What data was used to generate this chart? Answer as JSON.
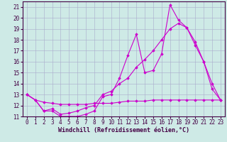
{
  "xlabel": "Windchill (Refroidissement éolien,°C)",
  "xlim": [
    -0.5,
    23.5
  ],
  "ylim": [
    11,
    21.5
  ],
  "xticks": [
    0,
    1,
    2,
    3,
    4,
    5,
    6,
    7,
    8,
    9,
    10,
    11,
    12,
    13,
    14,
    15,
    16,
    17,
    18,
    19,
    20,
    21,
    22,
    23
  ],
  "yticks": [
    11,
    12,
    13,
    14,
    15,
    16,
    17,
    18,
    19,
    20,
    21
  ],
  "background_color": "#ceeae6",
  "line_color": "#cc00cc",
  "grid_color": "#aaaacc",
  "lines": [
    [
      13.0,
      12.5,
      11.5,
      11.5,
      11.0,
      11.0,
      11.0,
      11.2,
      11.5,
      12.8,
      13.0,
      14.5,
      16.6,
      18.5,
      15.0,
      15.2,
      16.7,
      21.2,
      19.8,
      19.1,
      17.8,
      16.0,
      14.0,
      12.5
    ],
    [
      13.0,
      12.5,
      11.5,
      11.7,
      11.2,
      11.3,
      11.5,
      11.8,
      12.0,
      13.0,
      13.3,
      14.0,
      14.5,
      15.5,
      16.2,
      17.0,
      18.0,
      19.0,
      19.5,
      19.1,
      17.5,
      16.0,
      13.5,
      12.5
    ],
    [
      13.0,
      12.5,
      12.3,
      12.2,
      12.1,
      12.1,
      12.1,
      12.1,
      12.2,
      12.2,
      12.2,
      12.3,
      12.4,
      12.4,
      12.4,
      12.5,
      12.5,
      12.5,
      12.5,
      12.5,
      12.5,
      12.5,
      12.5,
      12.5
    ]
  ],
  "tick_fontsize": 5.5,
  "xlabel_fontsize": 6.0,
  "marker": "D",
  "markersize": 1.8,
  "linewidth": 0.8
}
